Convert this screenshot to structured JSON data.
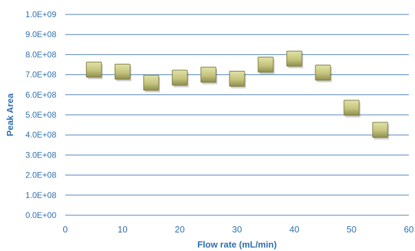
{
  "chart_data": {
    "type": "scatter",
    "xlabel": "Flow rate (mL/min)",
    "ylabel": "Peak Area",
    "xlim": [
      0,
      60
    ],
    "ylim": [
      0,
      1000000000
    ],
    "x_ticks": [
      "0",
      "10",
      "20",
      "30",
      "40",
      "50",
      "60"
    ],
    "y_ticks": [
      "0.0E+00",
      "1.0E+08",
      "2.0E+08",
      "3.0E+08",
      "4.0E+08",
      "5.0E+08",
      "6.0E+08",
      "7.0E+08",
      "8.0E+08",
      "9.0E+08",
      "1.0E+09"
    ],
    "grid": "horizontal",
    "legend": "none",
    "marker": "square",
    "marker_color": "#c4c47e",
    "series": [
      {
        "x": [
          5,
          10,
          15,
          20,
          25,
          30,
          35,
          40,
          45,
          50,
          55
        ],
        "y": [
          725000000,
          715000000,
          660000000,
          685000000,
          700000000,
          680000000,
          750000000,
          780000000,
          710000000,
          535000000,
          425000000
        ]
      }
    ]
  }
}
